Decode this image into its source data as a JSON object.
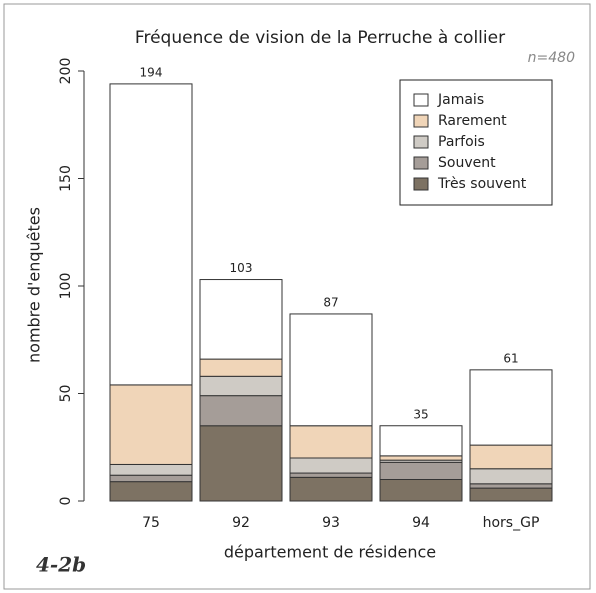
{
  "chart_data": {
    "type": "stacked-bar",
    "title": "Fréquence de vision de la Perruche à collier",
    "annotation": "n=480",
    "figure_label": "4-2b",
    "x_label": "département de résidence",
    "y_label": "nombre d'enquêtes",
    "categories": [
      "75",
      "92",
      "93",
      "94",
      "hors_GP"
    ],
    "totals": [
      194,
      103,
      87,
      35,
      61
    ],
    "series": [
      {
        "name": "Très souvent",
        "color": "#7d7263",
        "values": [
          9,
          35,
          11,
          10,
          6
        ]
      },
      {
        "name": "Souvent",
        "color": "#a59d98",
        "values": [
          3,
          14,
          2,
          8,
          2
        ]
      },
      {
        "name": "Parfois",
        "color": "#cfcbc5",
        "values": [
          5,
          9,
          7,
          1,
          7
        ]
      },
      {
        "name": "Rarement",
        "color": "#f0d5b8",
        "values": [
          37,
          8,
          15,
          2,
          11
        ]
      },
      {
        "name": "Jamais",
        "color": "#ffffff",
        "values": [
          140,
          37,
          52,
          14,
          35
        ]
      }
    ],
    "ylim": [
      0,
      200
    ],
    "yticks": [
      0,
      50,
      100,
      150,
      200
    ],
    "legend": "top-right"
  }
}
